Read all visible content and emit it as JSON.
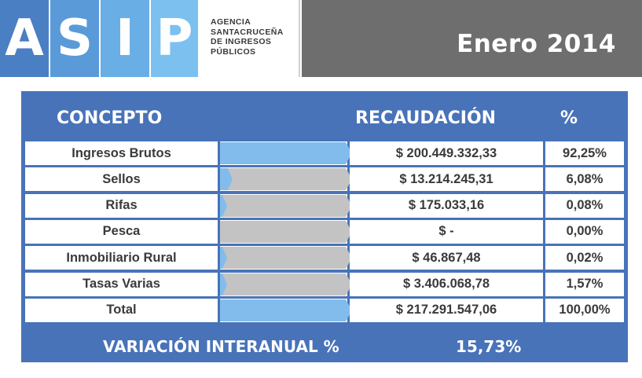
{
  "header": {
    "logo_letters": [
      "A",
      "S",
      "I",
      "P"
    ],
    "logo_colors": [
      "#4a7fc4",
      "#5a9ad8",
      "#6aaee6",
      "#7cc0f0"
    ],
    "agency_lines": [
      "AGENCIA",
      "SANTACRUCEÑA",
      "DE INGRESOS",
      "PÚBLICOS"
    ],
    "period": "Enero 2014"
  },
  "table": {
    "headers": {
      "concept": "CONCEPTO",
      "amount": "RECAUDACIÓN",
      "percent": "%"
    },
    "footer": {
      "label": "VARIACIÓN INTERANUAL %",
      "value": "15,73%"
    }
  },
  "colors": {
    "panel_blue": "#4873b8",
    "bar_blue": "#82bcec",
    "bar_gray": "#c3c3c3",
    "header_gray": "#6e6e6e"
  },
  "chart_data": {
    "type": "table",
    "rows": [
      {
        "concept": "Ingresos Brutos",
        "amount": "$ 200.449.332,33",
        "percent": "92,25%",
        "share": 92.25
      },
      {
        "concept": "Sellos",
        "amount": "$ 13.214.245,31",
        "percent": "6,08%",
        "share": 6.08
      },
      {
        "concept": "Rifas",
        "amount": "$ 175.033,16",
        "percent": "0,08%",
        "share": 0.08
      },
      {
        "concept": "Pesca",
        "amount": "$ -",
        "percent": "0,00%",
        "share": 0.0
      },
      {
        "concept": "Inmobiliario Rural",
        "amount": "$ 46.867,48",
        "percent": "0,02%",
        "share": 0.02
      },
      {
        "concept": "Tasas Varias",
        "amount": "$ 3.406.068,78",
        "percent": "1,57%",
        "share": 1.57
      },
      {
        "concept": "Total",
        "amount": "$ 217.291.547,06",
        "percent": "100,00%",
        "share": 100.0
      }
    ]
  }
}
